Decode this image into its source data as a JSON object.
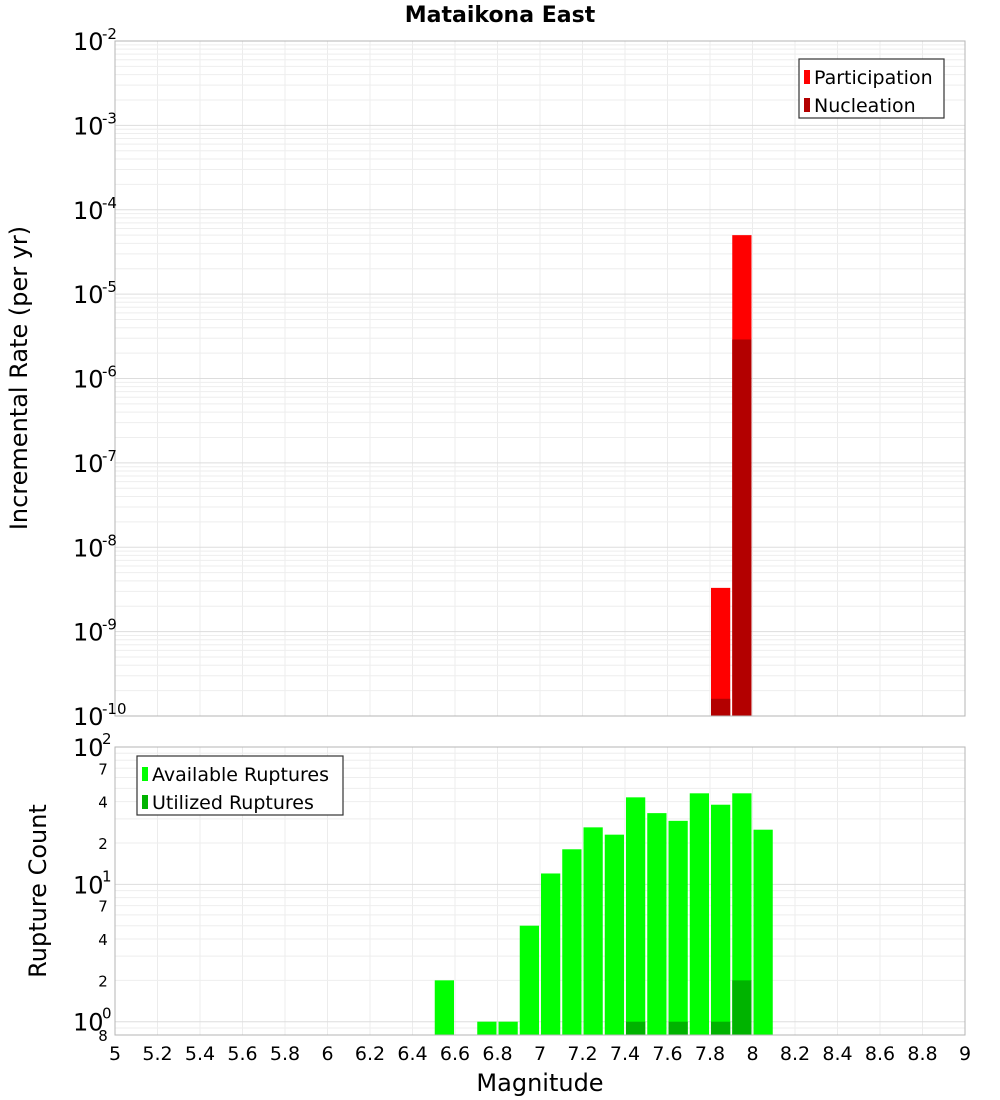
{
  "chart_data": [
    {
      "type": "bar",
      "title": "Mataikona East",
      "ylabel": "Incremental Rate (per yr)",
      "yscale": "log",
      "ylim": [
        1e-10,
        0.01
      ],
      "xlim": [
        5,
        9
      ],
      "bin_width": 0.1,
      "grid": true,
      "legend_position": "top-right",
      "series": [
        {
          "name": "Participation",
          "color": "#ff0000",
          "x": [
            7.85,
            7.95
          ],
          "values": [
            3.3e-09,
            5e-05
          ]
        },
        {
          "name": "Nucleation",
          "color": "#b30000",
          "x": [
            7.85,
            7.95
          ],
          "values": [
            1.6e-10,
            2.9e-06
          ]
        }
      ],
      "y_ticks": [
        {
          "base": "10",
          "exp": "-10"
        },
        {
          "base": "10",
          "exp": "-9"
        },
        {
          "base": "10",
          "exp": "-8"
        },
        {
          "base": "10",
          "exp": "-7"
        },
        {
          "base": "10",
          "exp": "-6"
        },
        {
          "base": "10",
          "exp": "-5"
        },
        {
          "base": "10",
          "exp": "-4"
        },
        {
          "base": "10",
          "exp": "-3"
        },
        {
          "base": "10",
          "exp": "-2"
        }
      ]
    },
    {
      "type": "bar",
      "xlabel": "Magnitude",
      "ylabel": "Rupture Count",
      "yscale": "log",
      "ylim": [
        0.8,
        100
      ],
      "xlim": [
        5,
        9
      ],
      "bin_width": 0.1,
      "grid": true,
      "legend_position": "top-left",
      "series": [
        {
          "name": "Available Ruptures",
          "color": "#00ff00",
          "x": [
            6.55,
            6.75,
            6.85,
            6.95,
            7.05,
            7.15,
            7.25,
            7.35,
            7.45,
            7.55,
            7.65,
            7.75,
            7.85,
            7.95,
            8.05
          ],
          "values": [
            2,
            1,
            1,
            5,
            12,
            18,
            26,
            23,
            43,
            33,
            29,
            46,
            38,
            46,
            25
          ]
        },
        {
          "name": "Utilized Ruptures",
          "color": "#00b300",
          "x": [
            7.45,
            7.65,
            7.85,
            7.95
          ],
          "values": [
            1,
            1,
            1,
            2
          ]
        }
      ],
      "y_major_ticks": [
        {
          "base": "10",
          "exp": "0"
        },
        {
          "base": "10",
          "exp": "1"
        },
        {
          "base": "10",
          "exp": "2"
        }
      ],
      "y_minor_ticks": [
        {
          "value": 0.8,
          "label": "8"
        },
        {
          "value": 2,
          "label": "2"
        },
        {
          "value": 4,
          "label": "4"
        },
        {
          "value": 7,
          "label": "7"
        },
        {
          "value": 20,
          "label": "2"
        },
        {
          "value": 40,
          "label": "4"
        },
        {
          "value": 70,
          "label": "7"
        }
      ],
      "x_ticks": [
        "5",
        "5.2",
        "5.4",
        "5.6",
        "5.8",
        "6",
        "6.2",
        "6.4",
        "6.6",
        "6.8",
        "7",
        "7.2",
        "7.4",
        "7.6",
        "7.8",
        "8",
        "8.2",
        "8.4",
        "8.6",
        "8.8",
        "9"
      ]
    }
  ]
}
